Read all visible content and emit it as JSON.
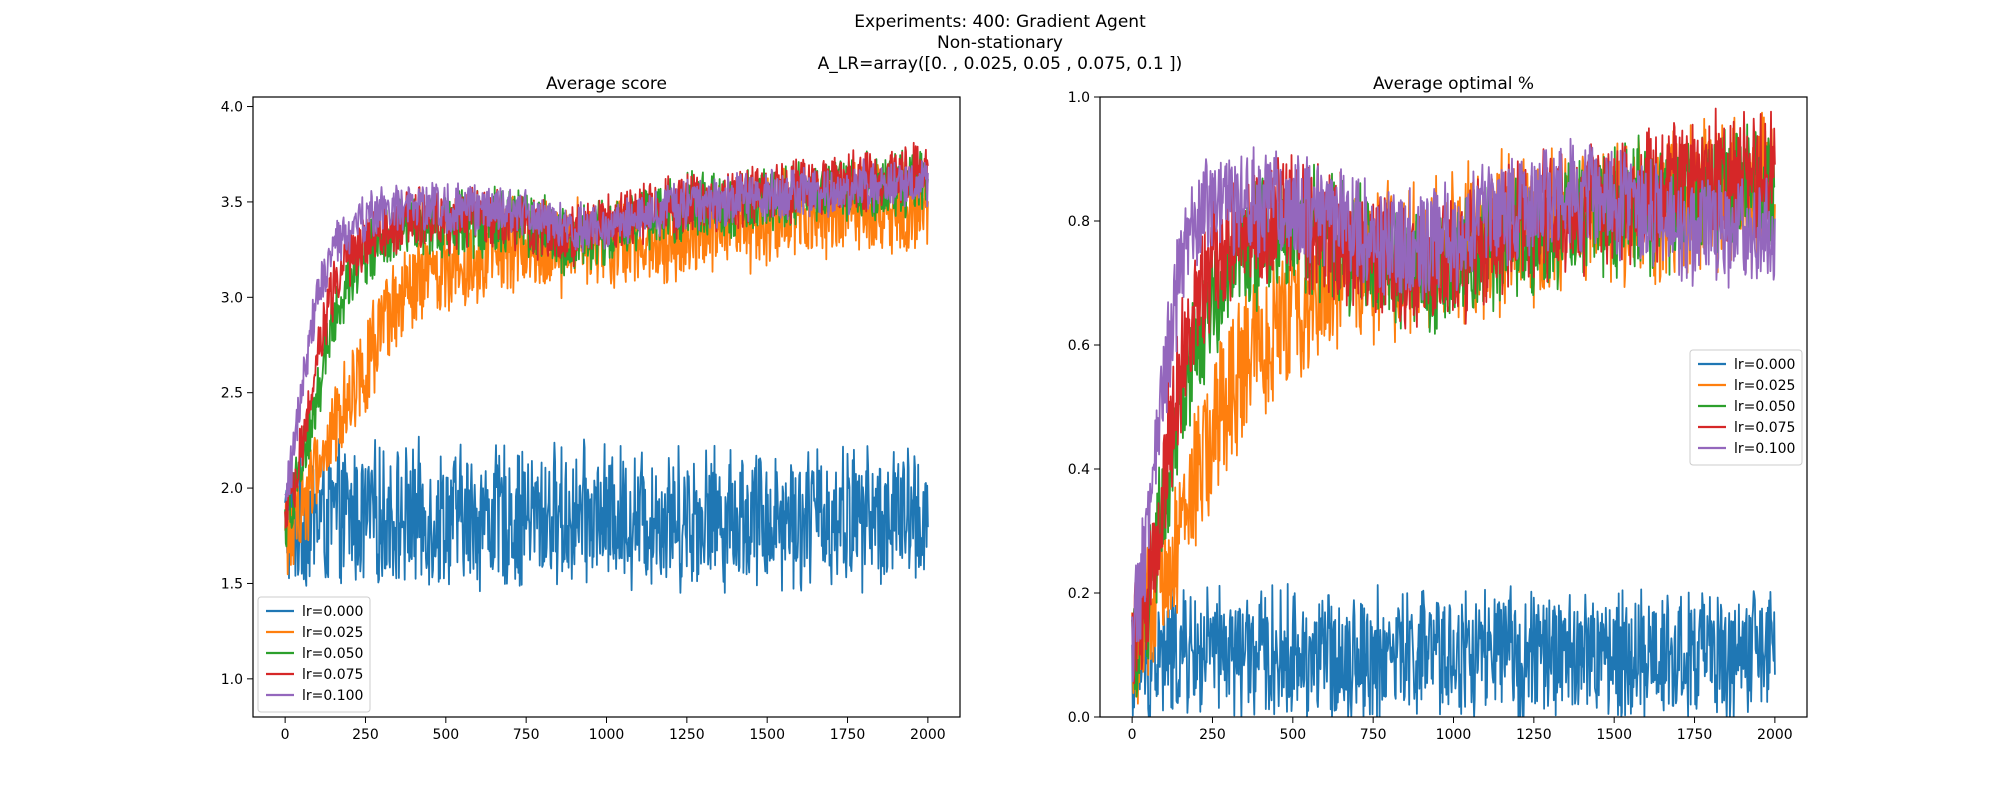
{
  "figure": {
    "suptitle_lines": [
      "Experiments: 400: Gradient Agent",
      "Non-stationary",
      "A_LR=array([0.   , 0.025, 0.05 , 0.075, 0.1  ])"
    ]
  },
  "series_colors": {
    "lr=0.000": "#1f77b4",
    "lr=0.025": "#ff7f0e",
    "lr=0.050": "#2ca02c",
    "lr=0.075": "#d62728",
    "lr=0.100": "#9467bd"
  },
  "chart_data": [
    {
      "type": "line",
      "title": "Average score",
      "xlabel": "",
      "ylabel": "",
      "xlim": [
        -100,
        2100
      ],
      "ylim": [
        0.8,
        4.05
      ],
      "xticks": [
        0,
        250,
        500,
        750,
        1000,
        1250,
        1500,
        1750,
        2000
      ],
      "xtick_labels": [
        "0",
        "250",
        "500",
        "750",
        "1000",
        "1250",
        "1500",
        "1750",
        "2000"
      ],
      "yticks": [
        1.0,
        1.5,
        2.0,
        2.5,
        3.0,
        3.5,
        4.0
      ],
      "ytick_labels": [
        "1.0",
        "1.5",
        "2.0",
        "2.5",
        "3.0",
        "3.5",
        "4.0"
      ],
      "grid": false,
      "legend_position": "lower-left",
      "x_step": 50,
      "series": [
        {
          "name": "lr=0.000",
          "color": "#1f77b4",
          "noise": 0.42,
          "x": [
            0,
            50,
            100,
            150,
            200,
            250,
            300,
            350,
            400,
            450,
            500,
            550,
            600,
            650,
            700,
            750,
            800,
            850,
            900,
            950,
            1000,
            1050,
            1100,
            1150,
            1200,
            1250,
            1300,
            1350,
            1400,
            1450,
            1500,
            1550,
            1600,
            1650,
            1700,
            1750,
            1800,
            1850,
            1900,
            1950,
            2000
          ],
          "values": [
            1.8,
            1.85,
            1.85,
            1.85,
            1.85,
            1.85,
            1.85,
            1.85,
            1.85,
            1.85,
            1.85,
            1.85,
            1.85,
            1.85,
            1.85,
            1.85,
            1.85,
            1.85,
            1.85,
            1.85,
            1.85,
            1.85,
            1.85,
            1.85,
            1.85,
            1.85,
            1.85,
            1.85,
            1.85,
            1.85,
            1.85,
            1.85,
            1.85,
            1.85,
            1.85,
            1.85,
            1.85,
            1.85,
            1.85,
            1.85,
            1.85
          ]
        },
        {
          "name": "lr=0.025",
          "color": "#ff7f0e",
          "noise": 0.28,
          "x": [
            0,
            50,
            100,
            150,
            200,
            250,
            300,
            350,
            400,
            450,
            500,
            550,
            600,
            650,
            700,
            750,
            800,
            850,
            900,
            950,
            1000,
            1050,
            1100,
            1150,
            1200,
            1250,
            1300,
            1350,
            1400,
            1450,
            1500,
            1550,
            1600,
            1650,
            1700,
            1750,
            1800,
            1850,
            1900,
            1950,
            2000
          ],
          "values": [
            1.7,
            1.9,
            2.1,
            2.3,
            2.5,
            2.65,
            2.8,
            2.95,
            3.05,
            3.1,
            3.15,
            3.2,
            3.22,
            3.25,
            3.25,
            3.27,
            3.27,
            3.25,
            3.27,
            3.28,
            3.28,
            3.3,
            3.3,
            3.32,
            3.33,
            3.35,
            3.35,
            3.37,
            3.37,
            3.38,
            3.38,
            3.4,
            3.42,
            3.43,
            3.43,
            3.45,
            3.45,
            3.45,
            3.47,
            3.47,
            3.5
          ]
        },
        {
          "name": "lr=0.050",
          "color": "#2ca02c",
          "noise": 0.2,
          "x": [
            0,
            50,
            100,
            150,
            200,
            250,
            300,
            350,
            400,
            450,
            500,
            550,
            600,
            650,
            700,
            750,
            800,
            850,
            900,
            950,
            1000,
            1050,
            1100,
            1150,
            1200,
            1250,
            1300,
            1350,
            1400,
            1450,
            1500,
            1550,
            1600,
            1650,
            1700,
            1750,
            1800,
            1850,
            1900,
            1950,
            2000
          ],
          "values": [
            1.8,
            2.1,
            2.5,
            2.9,
            3.1,
            3.2,
            3.3,
            3.35,
            3.38,
            3.38,
            3.38,
            3.38,
            3.38,
            3.4,
            3.4,
            3.38,
            3.35,
            3.3,
            3.3,
            3.32,
            3.35,
            3.38,
            3.4,
            3.42,
            3.45,
            3.47,
            3.47,
            3.48,
            3.48,
            3.5,
            3.5,
            3.52,
            3.53,
            3.55,
            3.55,
            3.57,
            3.58,
            3.58,
            3.6,
            3.6,
            3.6
          ]
        },
        {
          "name": "lr=0.075",
          "color": "#d62728",
          "noise": 0.18,
          "x": [
            0,
            50,
            100,
            150,
            200,
            250,
            300,
            350,
            400,
            450,
            500,
            550,
            600,
            650,
            700,
            750,
            800,
            850,
            900,
            950,
            1000,
            1050,
            1100,
            1150,
            1200,
            1250,
            1300,
            1350,
            1400,
            1450,
            1500,
            1550,
            1600,
            1650,
            1700,
            1750,
            1800,
            1850,
            1900,
            1950,
            2000
          ],
          "values": [
            1.8,
            2.2,
            2.7,
            3.05,
            3.2,
            3.3,
            3.35,
            3.4,
            3.42,
            3.42,
            3.4,
            3.4,
            3.4,
            3.42,
            3.4,
            3.38,
            3.35,
            3.32,
            3.32,
            3.35,
            3.38,
            3.4,
            3.42,
            3.45,
            3.47,
            3.48,
            3.5,
            3.5,
            3.52,
            3.53,
            3.55,
            3.55,
            3.57,
            3.58,
            3.6,
            3.6,
            3.62,
            3.63,
            3.65,
            3.65,
            3.65
          ]
        },
        {
          "name": "lr=0.100",
          "color": "#9467bd",
          "noise": 0.15,
          "x": [
            0,
            50,
            100,
            150,
            200,
            250,
            300,
            350,
            400,
            450,
            500,
            550,
            600,
            650,
            700,
            750,
            800,
            850,
            900,
            950,
            1000,
            1050,
            1100,
            1150,
            1200,
            1250,
            1300,
            1350,
            1400,
            1450,
            1500,
            1550,
            1600,
            1650,
            1700,
            1750,
            1800,
            1850,
            1900,
            1950,
            2000
          ],
          "values": [
            1.9,
            2.5,
            3.0,
            3.25,
            3.35,
            3.42,
            3.45,
            3.47,
            3.48,
            3.48,
            3.47,
            3.46,
            3.46,
            3.46,
            3.45,
            3.45,
            3.42,
            3.38,
            3.35,
            3.36,
            3.38,
            3.4,
            3.42,
            3.45,
            3.47,
            3.48,
            3.5,
            3.5,
            3.52,
            3.52,
            3.53,
            3.53,
            3.55,
            3.55,
            3.57,
            3.57,
            3.58,
            3.58,
            3.6,
            3.6,
            3.6
          ]
        }
      ]
    },
    {
      "type": "line",
      "title": "Average optimal %",
      "xlabel": "",
      "ylabel": "",
      "xlim": [
        -100,
        2100
      ],
      "ylim": [
        0.0,
        1.0
      ],
      "xticks": [
        0,
        250,
        500,
        750,
        1000,
        1250,
        1500,
        1750,
        2000
      ],
      "xtick_labels": [
        "0",
        "250",
        "500",
        "750",
        "1000",
        "1250",
        "1500",
        "1750",
        "2000"
      ],
      "yticks": [
        0.0,
        0.2,
        0.4,
        0.6,
        0.8,
        1.0
      ],
      "ytick_labels": [
        "0.0",
        "0.2",
        "0.4",
        "0.6",
        "0.8",
        "1.0"
      ],
      "grid": false,
      "legend_position": "center-right",
      "x_step": 50,
      "series": [
        {
          "name": "lr=0.000",
          "color": "#1f77b4",
          "noise": 0.12,
          "x": [
            0,
            50,
            100,
            150,
            200,
            250,
            300,
            350,
            400,
            450,
            500,
            550,
            600,
            650,
            700,
            750,
            800,
            850,
            900,
            950,
            1000,
            1050,
            1100,
            1150,
            1200,
            1250,
            1300,
            1350,
            1400,
            1450,
            1500,
            1550,
            1600,
            1650,
            1700,
            1750,
            1800,
            1850,
            1900,
            1950,
            2000
          ],
          "values": [
            0.08,
            0.09,
            0.1,
            0.1,
            0.1,
            0.1,
            0.1,
            0.1,
            0.1,
            0.1,
            0.1,
            0.1,
            0.1,
            0.1,
            0.1,
            0.1,
            0.1,
            0.1,
            0.1,
            0.1,
            0.1,
            0.1,
            0.1,
            0.1,
            0.1,
            0.1,
            0.1,
            0.1,
            0.1,
            0.1,
            0.1,
            0.1,
            0.1,
            0.1,
            0.1,
            0.1,
            0.1,
            0.1,
            0.1,
            0.1,
            0.1
          ]
        },
        {
          "name": "lr=0.025",
          "color": "#ff7f0e",
          "noise": 0.14,
          "x": [
            0,
            50,
            100,
            150,
            200,
            250,
            300,
            350,
            400,
            450,
            500,
            550,
            600,
            650,
            700,
            750,
            800,
            850,
            900,
            950,
            1000,
            1050,
            1100,
            1150,
            1200,
            1250,
            1300,
            1350,
            1400,
            1450,
            1500,
            1550,
            1600,
            1650,
            1700,
            1750,
            1800,
            1850,
            1900,
            1950,
            2000
          ],
          "values": [
            0.1,
            0.15,
            0.22,
            0.3,
            0.38,
            0.45,
            0.52,
            0.57,
            0.6,
            0.63,
            0.65,
            0.67,
            0.69,
            0.7,
            0.72,
            0.73,
            0.74,
            0.74,
            0.75,
            0.75,
            0.76,
            0.77,
            0.77,
            0.78,
            0.78,
            0.79,
            0.79,
            0.8,
            0.8,
            0.81,
            0.81,
            0.82,
            0.82,
            0.82,
            0.83,
            0.83,
            0.84,
            0.84,
            0.85,
            0.85,
            0.85
          ]
        },
        {
          "name": "lr=0.050",
          "color": "#2ca02c",
          "noise": 0.12,
          "x": [
            0,
            50,
            100,
            150,
            200,
            250,
            300,
            350,
            400,
            450,
            500,
            550,
            600,
            650,
            700,
            750,
            800,
            850,
            900,
            950,
            1000,
            1050,
            1100,
            1150,
            1200,
            1250,
            1300,
            1350,
            1400,
            1450,
            1500,
            1550,
            1600,
            1650,
            1700,
            1750,
            1800,
            1850,
            1900,
            1950,
            2000
          ],
          "values": [
            0.1,
            0.2,
            0.35,
            0.5,
            0.6,
            0.67,
            0.72,
            0.75,
            0.77,
            0.78,
            0.78,
            0.78,
            0.77,
            0.76,
            0.75,
            0.74,
            0.73,
            0.72,
            0.72,
            0.72,
            0.73,
            0.74,
            0.75,
            0.76,
            0.77,
            0.78,
            0.79,
            0.8,
            0.8,
            0.81,
            0.81,
            0.82,
            0.82,
            0.83,
            0.83,
            0.84,
            0.84,
            0.85,
            0.85,
            0.85,
            0.86
          ]
        },
        {
          "name": "lr=0.075",
          "color": "#d62728",
          "noise": 0.12,
          "x": [
            0,
            50,
            100,
            150,
            200,
            250,
            300,
            350,
            400,
            450,
            500,
            550,
            600,
            650,
            700,
            750,
            800,
            850,
            900,
            950,
            1000,
            1050,
            1100,
            1150,
            1200,
            1250,
            1300,
            1350,
            1400,
            1450,
            1500,
            1550,
            1600,
            1650,
            1700,
            1750,
            1800,
            1850,
            1900,
            1950,
            2000
          ],
          "values": [
            0.1,
            0.22,
            0.4,
            0.55,
            0.65,
            0.72,
            0.76,
            0.78,
            0.8,
            0.8,
            0.8,
            0.79,
            0.78,
            0.77,
            0.76,
            0.75,
            0.73,
            0.72,
            0.72,
            0.73,
            0.74,
            0.75,
            0.76,
            0.78,
            0.79,
            0.8,
            0.81,
            0.82,
            0.82,
            0.83,
            0.84,
            0.84,
            0.85,
            0.85,
            0.86,
            0.86,
            0.87,
            0.87,
            0.88,
            0.88,
            0.88
          ]
        },
        {
          "name": "lr=0.100",
          "color": "#9467bd",
          "noise": 0.1,
          "x": [
            0,
            50,
            100,
            150,
            200,
            250,
            300,
            350,
            400,
            450,
            500,
            550,
            600,
            650,
            700,
            750,
            800,
            850,
            900,
            950,
            1000,
            1050,
            1100,
            1150,
            1200,
            1250,
            1300,
            1350,
            1400,
            1450,
            1500,
            1550,
            1600,
            1650,
            1700,
            1750,
            1800,
            1850,
            1900,
            1950,
            2000
          ],
          "values": [
            0.12,
            0.3,
            0.55,
            0.72,
            0.8,
            0.82,
            0.83,
            0.83,
            0.83,
            0.83,
            0.82,
            0.82,
            0.81,
            0.8,
            0.79,
            0.78,
            0.77,
            0.76,
            0.76,
            0.77,
            0.78,
            0.79,
            0.8,
            0.81,
            0.82,
            0.83,
            0.83,
            0.84,
            0.84,
            0.84,
            0.83,
            0.82,
            0.81,
            0.8,
            0.79,
            0.79,
            0.79,
            0.78,
            0.78,
            0.78,
            0.78
          ]
        }
      ]
    }
  ]
}
